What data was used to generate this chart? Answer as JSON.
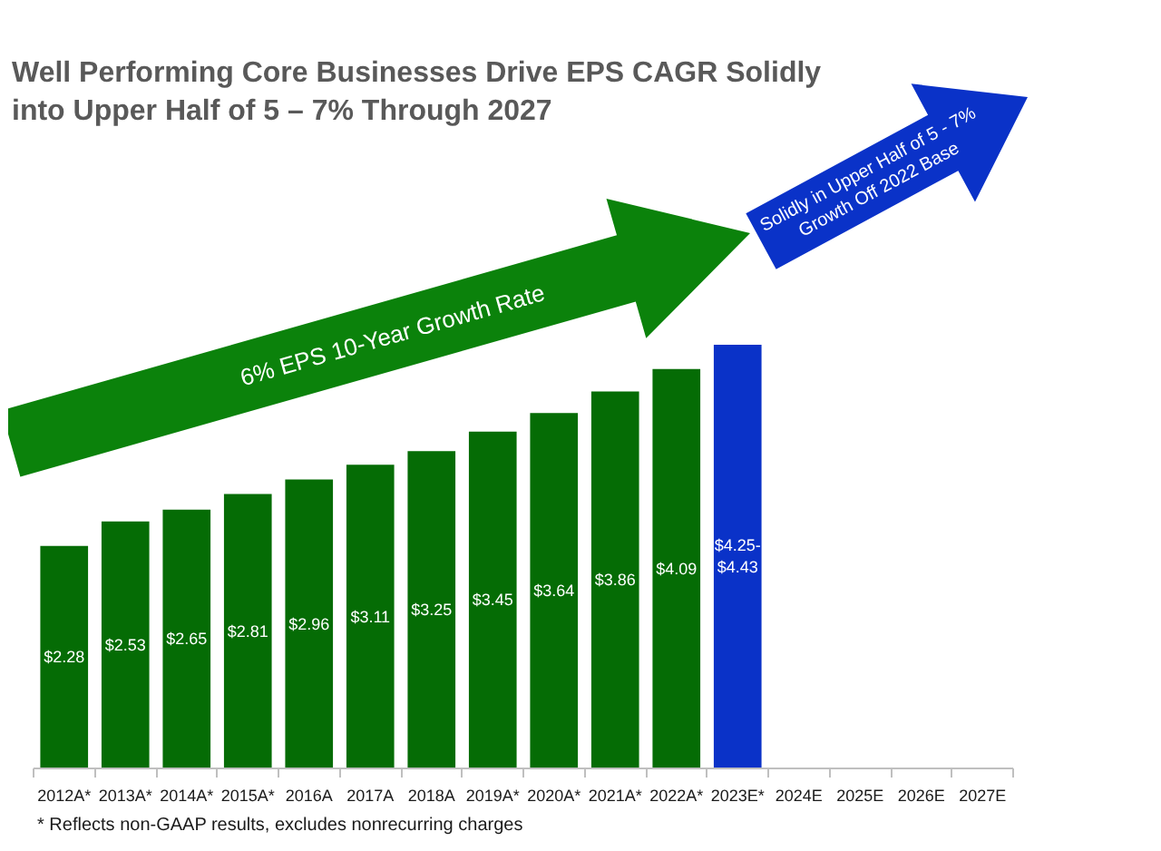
{
  "chart_data": {
    "type": "bar",
    "title": "Well Performing Core Businesses Drive EPS CAGR Solidly into Upper Half of 5 – 7% Through 2027",
    "categories": [
      "2012A*",
      "2013A*",
      "2014A*",
      "2015A*",
      "2016A",
      "2017A",
      "2018A",
      "2019A*",
      "2020A*",
      "2021A*",
      "2022A*",
      "2023E*",
      "2024E",
      "2025E",
      "2026E",
      "2027E"
    ],
    "values": [
      2.28,
      2.53,
      2.65,
      2.81,
      2.96,
      3.11,
      3.25,
      3.45,
      3.64,
      3.86,
      4.09,
      4.34,
      null,
      null,
      null,
      null
    ],
    "colors": [
      "#056c05",
      "#056c05",
      "#056c05",
      "#056c05",
      "#056c05",
      "#056c05",
      "#056c05",
      "#056c05",
      "#056c05",
      "#056c05",
      "#056c05",
      "#0a32c8",
      null,
      null,
      null,
      null
    ],
    "value_labels": [
      "$2.28",
      "$2.53",
      "$2.65",
      "$2.81",
      "$2.96",
      "$3.11",
      "$3.25",
      "$3.45",
      "$3.64",
      "$3.86",
      "$4.09",
      "$4.25-\n$4.43",
      null,
      null,
      null,
      null
    ],
    "annotations": [
      "6% EPS 10-Year Growth Rate",
      "Solidly in Upper Half of 5 - 7%\nGrowth Off 2022 Base",
      "* Reflects non-GAAP results, excludes nonrecurring charges"
    ]
  }
}
